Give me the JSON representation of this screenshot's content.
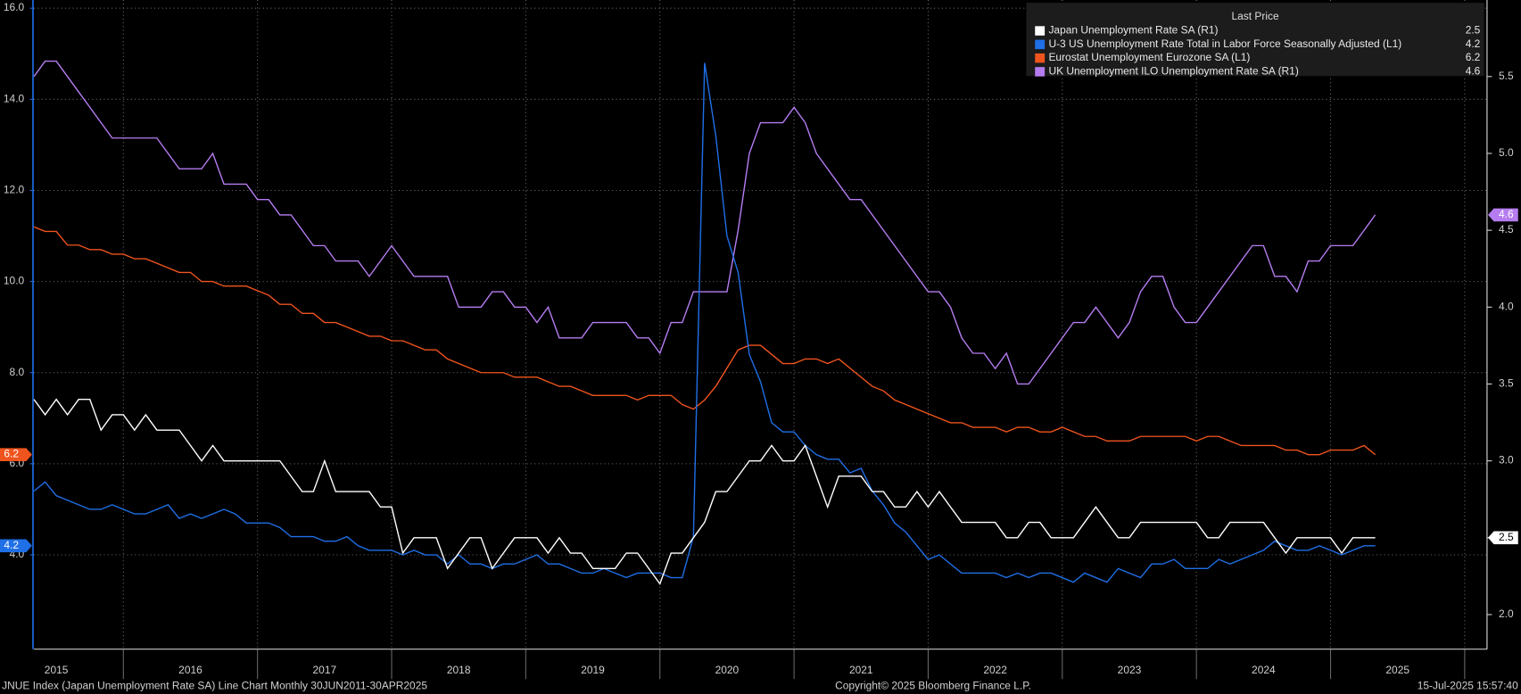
{
  "chart_data": {
    "type": "line",
    "background": "#000000",
    "x": [
      "2015-04",
      "2015-05",
      "2015-06",
      "2015-07",
      "2015-08",
      "2015-09",
      "2015-10",
      "2015-11",
      "2015-12",
      "2016-01",
      "2016-02",
      "2016-03",
      "2016-04",
      "2016-05",
      "2016-06",
      "2016-07",
      "2016-08",
      "2016-09",
      "2016-10",
      "2016-11",
      "2016-12",
      "2017-01",
      "2017-02",
      "2017-03",
      "2017-04",
      "2017-05",
      "2017-06",
      "2017-07",
      "2017-08",
      "2017-09",
      "2017-10",
      "2017-11",
      "2017-12",
      "2018-01",
      "2018-02",
      "2018-03",
      "2018-04",
      "2018-05",
      "2018-06",
      "2018-07",
      "2018-08",
      "2018-09",
      "2018-10",
      "2018-11",
      "2018-12",
      "2019-01",
      "2019-02",
      "2019-03",
      "2019-04",
      "2019-05",
      "2019-06",
      "2019-07",
      "2019-08",
      "2019-09",
      "2019-10",
      "2019-11",
      "2019-12",
      "2020-01",
      "2020-02",
      "2020-03",
      "2020-04",
      "2020-05",
      "2020-06",
      "2020-07",
      "2020-08",
      "2020-09",
      "2020-10",
      "2020-11",
      "2020-12",
      "2021-01",
      "2021-02",
      "2021-03",
      "2021-04",
      "2021-05",
      "2021-06",
      "2021-07",
      "2021-08",
      "2021-09",
      "2021-10",
      "2021-11",
      "2021-12",
      "2022-01",
      "2022-02",
      "2022-03",
      "2022-04",
      "2022-05",
      "2022-06",
      "2022-07",
      "2022-08",
      "2022-09",
      "2022-10",
      "2022-11",
      "2022-12",
      "2023-01",
      "2023-02",
      "2023-03",
      "2023-04",
      "2023-05",
      "2023-06",
      "2023-07",
      "2023-08",
      "2023-09",
      "2023-10",
      "2023-11",
      "2023-12",
      "2024-01",
      "2024-02",
      "2024-03",
      "2024-04",
      "2024-05",
      "2024-06",
      "2024-07",
      "2024-08",
      "2024-09",
      "2024-10",
      "2024-11",
      "2024-12",
      "2025-01",
      "2025-02",
      "2025-03",
      "2025-04"
    ],
    "series": [
      {
        "name": "Japan Unemployment Rate SA  (R1)",
        "color": "#ffffff",
        "axis": "y2",
        "values": [
          3.4,
          3.3,
          3.4,
          3.3,
          3.4,
          3.4,
          3.2,
          3.3,
          3.3,
          3.2,
          3.3,
          3.2,
          3.2,
          3.2,
          3.1,
          3.0,
          3.1,
          3.0,
          3.0,
          3.0,
          3.0,
          3.0,
          3.0,
          2.9,
          2.8,
          2.8,
          3.0,
          2.8,
          2.8,
          2.8,
          2.8,
          2.7,
          2.7,
          2.4,
          2.5,
          2.5,
          2.5,
          2.3,
          2.4,
          2.5,
          2.5,
          2.3,
          2.4,
          2.5,
          2.5,
          2.5,
          2.4,
          2.5,
          2.4,
          2.4,
          2.3,
          2.3,
          2.3,
          2.4,
          2.4,
          2.3,
          2.2,
          2.4,
          2.4,
          2.5,
          2.6,
          2.8,
          2.8,
          2.9,
          3.0,
          3.0,
          3.1,
          3.0,
          3.0,
          3.1,
          2.9,
          2.7,
          2.9,
          2.9,
          2.9,
          2.8,
          2.8,
          2.7,
          2.7,
          2.8,
          2.7,
          2.8,
          2.7,
          2.6,
          2.6,
          2.6,
          2.6,
          2.5,
          2.5,
          2.6,
          2.6,
          2.5,
          2.5,
          2.5,
          2.6,
          2.7,
          2.6,
          2.5,
          2.5,
          2.6,
          2.6,
          2.6,
          2.6,
          2.6,
          2.6,
          2.5,
          2.5,
          2.6,
          2.6,
          2.6,
          2.6,
          2.5,
          2.4,
          2.5,
          2.5,
          2.5,
          2.5,
          2.4,
          2.5,
          2.5,
          2.5
        ]
      },
      {
        "name": "U-3 US Unemployment Rate Total in Labor Force Seasonally Adjusted  (L1)",
        "color": "#1f6fe6",
        "axis": "y",
        "values": [
          5.4,
          5.6,
          5.3,
          5.2,
          5.1,
          5.0,
          5.0,
          5.1,
          5.0,
          4.9,
          4.9,
          5.0,
          5.1,
          4.8,
          4.9,
          4.8,
          4.9,
          5.0,
          4.9,
          4.7,
          4.7,
          4.7,
          4.6,
          4.4,
          4.4,
          4.4,
          4.3,
          4.3,
          4.4,
          4.2,
          4.1,
          4.1,
          4.1,
          4.0,
          4.1,
          4.0,
          4.0,
          3.8,
          4.0,
          3.8,
          3.8,
          3.7,
          3.8,
          3.8,
          3.9,
          4.0,
          3.8,
          3.8,
          3.7,
          3.6,
          3.6,
          3.7,
          3.6,
          3.5,
          3.6,
          3.6,
          3.6,
          3.5,
          3.5,
          4.4,
          14.8,
          13.2,
          11.0,
          10.2,
          8.4,
          7.8,
          6.9,
          6.7,
          6.7,
          6.4,
          6.2,
          6.1,
          6.1,
          5.8,
          5.9,
          5.4,
          5.1,
          4.7,
          4.5,
          4.2,
          3.9,
          4.0,
          3.8,
          3.6,
          3.6,
          3.6,
          3.6,
          3.5,
          3.6,
          3.5,
          3.6,
          3.6,
          3.5,
          3.4,
          3.6,
          3.5,
          3.4,
          3.7,
          3.6,
          3.5,
          3.8,
          3.8,
          3.9,
          3.7,
          3.7,
          3.7,
          3.9,
          3.8,
          3.9,
          4.0,
          4.1,
          4.3,
          4.2,
          4.1,
          4.1,
          4.2,
          4.1,
          4.0,
          4.1,
          4.2,
          4.2
        ]
      },
      {
        "name": "Eurostat Unemployment Eurozone SA  (L1)",
        "color": "#f0541e",
        "axis": "y",
        "values": [
          11.2,
          11.1,
          11.1,
          10.8,
          10.8,
          10.7,
          10.7,
          10.6,
          10.6,
          10.5,
          10.5,
          10.4,
          10.3,
          10.2,
          10.2,
          10.0,
          10.0,
          9.9,
          9.9,
          9.9,
          9.8,
          9.7,
          9.5,
          9.5,
          9.3,
          9.3,
          9.1,
          9.1,
          9.0,
          8.9,
          8.8,
          8.8,
          8.7,
          8.7,
          8.6,
          8.5,
          8.5,
          8.3,
          8.2,
          8.1,
          8.0,
          8.0,
          8.0,
          7.9,
          7.9,
          7.9,
          7.8,
          7.7,
          7.7,
          7.6,
          7.5,
          7.5,
          7.5,
          7.5,
          7.4,
          7.5,
          7.5,
          7.5,
          7.3,
          7.2,
          7.4,
          7.7,
          8.1,
          8.5,
          8.6,
          8.6,
          8.4,
          8.2,
          8.2,
          8.3,
          8.3,
          8.2,
          8.3,
          8.1,
          7.9,
          7.7,
          7.6,
          7.4,
          7.3,
          7.2,
          7.1,
          7.0,
          6.9,
          6.9,
          6.8,
          6.8,
          6.8,
          6.7,
          6.8,
          6.8,
          6.7,
          6.7,
          6.8,
          6.7,
          6.6,
          6.6,
          6.5,
          6.5,
          6.5,
          6.6,
          6.6,
          6.6,
          6.6,
          6.6,
          6.5,
          6.6,
          6.6,
          6.5,
          6.4,
          6.4,
          6.4,
          6.4,
          6.3,
          6.3,
          6.2,
          6.2,
          6.3,
          6.3,
          6.3,
          6.4,
          6.2
        ]
      },
      {
        "name": "UK Unemployment ILO Unemployment Rate SA  (R1)",
        "color": "#b57cf0",
        "axis": "y2",
        "values": [
          5.5,
          5.6,
          5.6,
          5.5,
          5.4,
          5.3,
          5.2,
          5.1,
          5.1,
          5.1,
          5.1,
          5.1,
          5.0,
          4.9,
          4.9,
          4.9,
          5.0,
          4.8,
          4.8,
          4.8,
          4.7,
          4.7,
          4.6,
          4.6,
          4.5,
          4.4,
          4.4,
          4.3,
          4.3,
          4.3,
          4.2,
          4.3,
          4.4,
          4.3,
          4.2,
          4.2,
          4.2,
          4.2,
          4.0,
          4.0,
          4.0,
          4.1,
          4.1,
          4.0,
          4.0,
          3.9,
          4.0,
          3.8,
          3.8,
          3.8,
          3.9,
          3.9,
          3.9,
          3.9,
          3.8,
          3.8,
          3.7,
          3.9,
          3.9,
          4.1,
          4.1,
          4.1,
          4.1,
          4.5,
          5.0,
          5.2,
          5.2,
          5.2,
          5.3,
          5.2,
          5.0,
          4.9,
          4.8,
          4.7,
          4.7,
          4.6,
          4.5,
          4.4,
          4.3,
          4.2,
          4.1,
          4.1,
          4.0,
          3.8,
          3.7,
          3.7,
          3.6,
          3.7,
          3.5,
          3.5,
          3.6,
          3.7,
          3.8,
          3.9,
          3.9,
          4.0,
          3.9,
          3.8,
          3.9,
          4.1,
          4.2,
          4.2,
          4.0,
          3.9,
          3.9,
          4.0,
          4.1,
          4.2,
          4.3,
          4.4,
          4.4,
          4.2,
          4.2,
          4.1,
          4.3,
          4.3,
          4.4,
          4.4,
          4.4,
          4.5,
          4.6
        ]
      }
    ],
    "xlim": [
      "2015-04",
      "2026-02"
    ],
    "xticks": [
      {
        "value": "2015-06",
        "label": "2015"
      },
      {
        "value": "2016-06",
        "label": "2016"
      },
      {
        "value": "2017-06",
        "label": "2017"
      },
      {
        "value": "2018-06",
        "label": "2018"
      },
      {
        "value": "2019-06",
        "label": "2019"
      },
      {
        "value": "2020-06",
        "label": "2020"
      },
      {
        "value": "2021-06",
        "label": "2021"
      },
      {
        "value": "2022-06",
        "label": "2022"
      },
      {
        "value": "2023-06",
        "label": "2023"
      },
      {
        "value": "2024-06",
        "label": "2024"
      },
      {
        "value": "2025-06",
        "label": "2025"
      }
    ],
    "xgrid": [
      "2015-12",
      "2016-12",
      "2017-12",
      "2018-12",
      "2019-12",
      "2020-12",
      "2021-12",
      "2022-12",
      "2023-12",
      "2024-12",
      "2025-12"
    ],
    "ylim": [
      1.93,
      16.18
    ],
    "yticks": [
      {
        "value": 4,
        "label": "4.0"
      },
      {
        "value": 6,
        "label": "6.0"
      },
      {
        "value": 8,
        "label": "8.0"
      },
      {
        "value": 10,
        "label": "10.0"
      },
      {
        "value": 12,
        "label": "12.0"
      },
      {
        "value": 14,
        "label": "14.0"
      },
      {
        "value": 16,
        "label": "16.0"
      }
    ],
    "y2lim": [
      1.775,
      5.998
    ],
    "y2ticks": [
      {
        "value": 2,
        "label": "2.0"
      },
      2.5,
      {
        "value": 3,
        "label": "3.0"
      },
      3.5,
      {
        "value": 4,
        "label": "4.0"
      },
      4.5,
      {
        "value": 5,
        "label": "5.0"
      },
      5.5
    ],
    "grid": true,
    "legend_title": "Last Price",
    "legend_position": "top-right",
    "footer": {
      "left": "JNUE Index (Japan Unemployment Rate SA) Line Chart  Monthly 30JUN2011-30APR2025",
      "center": "Copyright© 2025 Bloomberg Finance L.P.",
      "right": "15-Jul-2025 15:57:40"
    }
  }
}
